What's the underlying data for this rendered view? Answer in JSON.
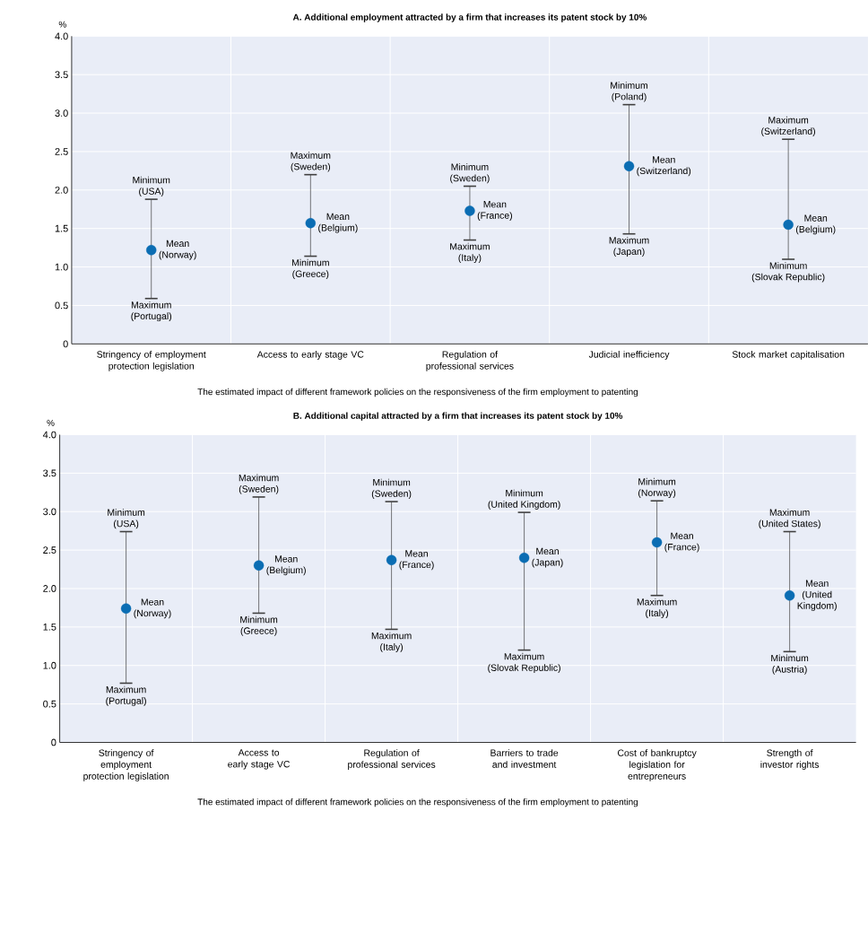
{
  "chart_data": [
    {
      "type": "scatter",
      "title": "A. Additional employment attracted by a firm that increases its patent stock by 10%",
      "ylabel": "%",
      "categories": [
        "Stringency of employment protection legislation",
        "Access to early stage VC",
        "Regulation of professional services",
        "Judicial inefficiency",
        "Stock market capitalisation"
      ],
      "values": [
        1.22,
        1.57,
        1.73,
        2.31,
        1.55
      ],
      "errors": [
        [
          0.59,
          1.88
        ],
        [
          1.14,
          2.2
        ],
        [
          1.35,
          2.05
        ],
        [
          1.43,
          3.11
        ],
        [
          1.1,
          2.66
        ]
      ],
      "color": "#0b6db3",
      "marker": "circle",
      "grid": true,
      "ylim": [
        0,
        4
      ],
      "yticks": [
        0,
        0.5,
        {
          "value": 1,
          "label": "1.0"
        },
        1.5,
        {
          "value": 2,
          "label": "2.0"
        },
        2.5,
        {
          "value": 3,
          "label": "3.0"
        },
        3.5,
        {
          "value": 4,
          "label": "4.0"
        }
      ],
      "annotations": [
        {
          "text": "Minimum",
          "x": "Stringency of employment protection legislation",
          "y": 1.88
        },
        {
          "text": "(USA)",
          "x": "Stringency of employment protection legislation",
          "y": 1.88
        },
        {
          "text": "Mean",
          "x": "Stringency of employment protection legislation",
          "y": 1.22
        },
        {
          "text": "(Norway)",
          "x": "Stringency of employment protection legislation",
          "y": 1.22
        },
        {
          "text": "Maximum",
          "x": "Stringency of employment protection legislation",
          "y": 0.59
        },
        {
          "text": "(Portugal)",
          "x": "Stringency of employment protection legislation",
          "y": 0.59
        },
        {
          "text": "Maximum",
          "x": "Access to early stage VC",
          "y": 2.2
        },
        {
          "text": "(Sweden)",
          "x": "Access to early stage VC",
          "y": 2.2
        },
        {
          "text": "Mean",
          "x": "Access to early stage VC",
          "y": 1.57
        },
        {
          "text": "(Belgium)",
          "x": "Access to early stage VC",
          "y": 1.57
        },
        {
          "text": "Minimum",
          "x": "Access to early stage VC",
          "y": 1.14
        },
        {
          "text": "(Greece)",
          "x": "Access to early stage VC",
          "y": 1.14
        },
        {
          "text": "Minimum",
          "x": "Regulation of professional services",
          "y": 2.05
        },
        {
          "text": "(Sweden)",
          "x": "Regulation of professional services",
          "y": 2.05
        },
        {
          "text": "Mean",
          "x": "Regulation of professional services",
          "y": 1.73
        },
        {
          "text": "(France)",
          "x": "Regulation of professional services",
          "y": 1.73
        },
        {
          "text": "Maximum",
          "x": "Regulation of professional services",
          "y": 1.35
        },
        {
          "text": "(Italy)",
          "x": "Regulation of professional services",
          "y": 1.35
        },
        {
          "text": "Minimum",
          "x": "Judicial inefficiency",
          "y": 3.11
        },
        {
          "text": "(Poland)",
          "x": "Judicial inefficiency",
          "y": 3.11
        },
        {
          "text": "Mean",
          "x": "Judicial inefficiency",
          "y": 2.31
        },
        {
          "text": "(Switzerland)",
          "x": "Judicial inefficiency",
          "y": 2.31
        },
        {
          "text": "Maximum",
          "x": "Judicial inefficiency",
          "y": 1.43
        },
        {
          "text": "(Japan)",
          "x": "Judicial inefficiency",
          "y": 1.43
        },
        {
          "text": "Maximum",
          "x": "Stock market capitalisation",
          "y": 2.66
        },
        {
          "text": "(Switzerland)",
          "x": "Stock market capitalisation",
          "y": 2.66
        },
        {
          "text": "Mean",
          "x": "Stock market capitalisation",
          "y": 1.55
        },
        {
          "text": "(Belgium)",
          "x": "Stock market capitalisation",
          "y": 1.55
        },
        {
          "text": "Minimum",
          "x": "Stock market capitalisation",
          "y": 1.1
        },
        {
          "text": "(Slovak Republic)",
          "x": "Stock market capitalisation",
          "y": 1.1
        },
        "The estimated impact of different framework policies on the responsiveness of the firm employment to patenting"
      ]
    },
    {
      "type": "scatter",
      "title": "B. Additional capital attracted by a firm that increases its patent stock by 10%",
      "ylabel": "%",
      "categories": [
        "Stringency of employment protection legislation",
        "Access to early stage VC",
        "Regulation of professional services",
        "Barriers to trade and investment",
        "Cost of bankruptcy legislation for entrepreneurs",
        "Strength of investor rights"
      ],
      "values": [
        1.74,
        2.3,
        2.37,
        2.4,
        2.6,
        1.91
      ],
      "errors": [
        [
          0.77,
          2.74
        ],
        [
          1.68,
          3.19
        ],
        [
          1.47,
          3.13
        ],
        [
          1.2,
          2.99
        ],
        [
          1.91,
          3.14
        ],
        [
          1.18,
          2.74
        ]
      ],
      "color": "#0b6db3",
      "marker": "circle",
      "grid": true,
      "ylim": [
        0,
        4
      ],
      "yticks": [
        0,
        0.5,
        {
          "value": 1,
          "label": "1.0"
        },
        1.5,
        {
          "value": 2,
          "label": "2.0"
        },
        2.5,
        {
          "value": 3,
          "label": "3.0"
        },
        3.5,
        {
          "value": 4,
          "label": "4.0"
        }
      ],
      "annotations": [
        {
          "text": "Minimum",
          "x": "Stringency of employment protection legislation",
          "y": 2.74
        },
        {
          "text": "(USA)",
          "x": "Stringency of employment protection legislation",
          "y": 2.74
        },
        {
          "text": "Mean",
          "x": "Stringency of employment protection legislation",
          "y": 1.74
        },
        {
          "text": "(Norway)",
          "x": "Stringency of employment protection legislation",
          "y": 1.74
        },
        {
          "text": "Maximum",
          "x": "Stringency of employment protection legislation",
          "y": 0.77
        },
        {
          "text": "(Portugal)",
          "x": "Stringency of employment protection legislation",
          "y": 0.77
        },
        {
          "text": "Maximum",
          "x": "Access to early stage VC",
          "y": 3.19
        },
        {
          "text": "(Sweden)",
          "x": "Access to early stage VC",
          "y": 3.19
        },
        {
          "text": "Mean",
          "x": "Access to early stage VC",
          "y": 2.3
        },
        {
          "text": "(Belgium)",
          "x": "Access to early stage VC",
          "y": 2.3
        },
        {
          "text": "Minimum",
          "x": "Access to early stage VC",
          "y": 1.68
        },
        {
          "text": "(Greece)",
          "x": "Access to early stage VC",
          "y": 1.68
        },
        {
          "text": "Minimum",
          "x": "Regulation of professional services",
          "y": 3.13
        },
        {
          "text": "(Sweden)",
          "x": "Regulation of professional services",
          "y": 3.13
        },
        {
          "text": "Mean",
          "x": "Regulation of professional services",
          "y": 2.37
        },
        {
          "text": "(France)",
          "x": "Regulation of professional services",
          "y": 2.37
        },
        {
          "text": "Maximum",
          "x": "Regulation of professional services",
          "y": 1.47
        },
        {
          "text": "(Italy)",
          "x": "Regulation of professional services",
          "y": 1.47
        },
        {
          "text": "Minimum",
          "x": "Barriers to trade and investment",
          "y": 2.99
        },
        {
          "text": "(United Kingdom)",
          "x": "Barriers to trade and investment",
          "y": 2.99
        },
        {
          "text": "Mean",
          "x": "Barriers to trade and investment",
          "y": 2.4
        },
        {
          "text": "(Japan)",
          "x": "Barriers to trade and investment",
          "y": 2.4
        },
        {
          "text": "Maximum",
          "x": "Barriers to trade and investment",
          "y": 1.2
        },
        {
          "text": "(Slovak Republic)",
          "x": "Barriers to trade and investment",
          "y": 1.2
        },
        {
          "text": "Minimum",
          "x": "Cost of bankruptcy legislation for entrepreneurs",
          "y": 3.14
        },
        {
          "text": "(Norway)",
          "x": "Cost of bankruptcy legislation for entrepreneurs",
          "y": 3.14
        },
        {
          "text": "Mean",
          "x": "Cost of bankruptcy legislation for entrepreneurs",
          "y": 2.6
        },
        {
          "text": "(France)",
          "x": "Cost of bankruptcy legislation for entrepreneurs",
          "y": 2.6
        },
        {
          "text": "Maximum",
          "x": "Cost of bankruptcy legislation for entrepreneurs",
          "y": 1.91
        },
        {
          "text": "(Italy)",
          "x": "Cost of bankruptcy legislation for entrepreneurs",
          "y": 1.91
        },
        {
          "text": "Maximum",
          "x": "Strength of investor rights",
          "y": 2.74
        },
        {
          "text": "(United States)",
          "x": "Strength of investor rights",
          "y": 2.74
        },
        {
          "text": "Mean",
          "x": "Strength of investor rights",
          "y": 1.91
        },
        {
          "text": "(United",
          "x": "Strength of investor rights",
          "y": 1.91
        },
        {
          "text": "Kingdom)",
          "x": "Strength of investor rights",
          "y": 1.91
        },
        {
          "text": "Minimum",
          "x": "Strength of investor rights",
          "y": 1.18
        },
        {
          "text": "(Austria)",
          "x": "Strength of investor rights",
          "y": 1.18
        },
        "The estimated impact of different framework policies on the responsiveness of the firm employment to patenting"
      ]
    }
  ]
}
